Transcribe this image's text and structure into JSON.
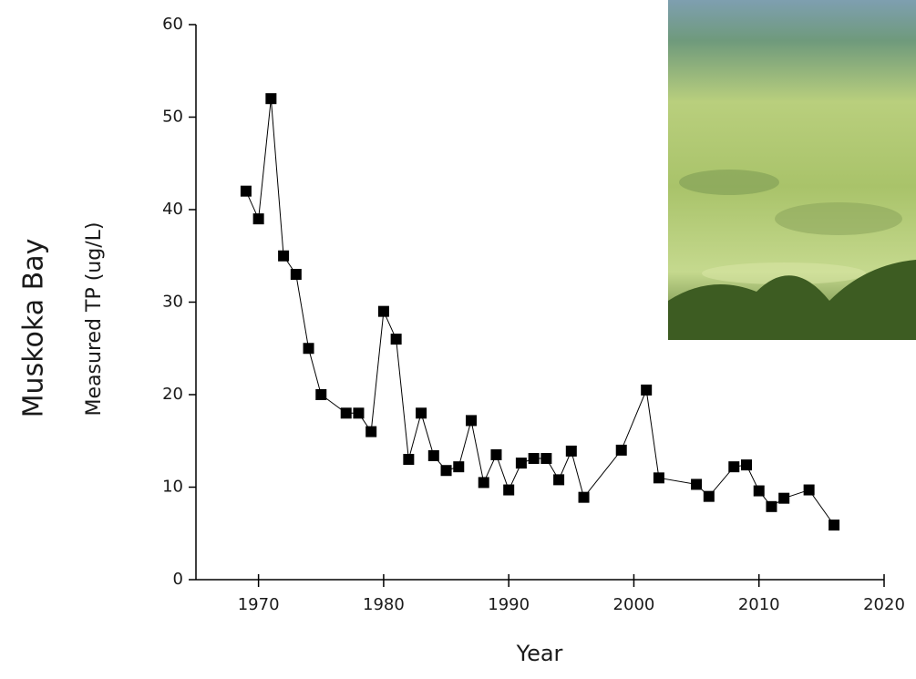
{
  "chart_data": {
    "type": "line",
    "group_label": "Muskoka Bay",
    "y_label": "Measured TP (ug/L)",
    "x_label": "Year",
    "x": [
      1969,
      1970,
      1971,
      1972,
      1973,
      1974,
      1975,
      1977,
      1978,
      1979,
      1980,
      1981,
      1982,
      1983,
      1984,
      1985,
      1986,
      1987,
      1988,
      1989,
      1990,
      1991,
      1992,
      1993,
      1994,
      1995,
      1996,
      1999,
      2001,
      2002,
      2005,
      2006,
      2008,
      2009,
      2010,
      2011,
      2012,
      2014,
      2016
    ],
    "series": [
      {
        "color": "#000000",
        "marker": "square",
        "values": [
          42,
          39,
          52,
          35,
          33,
          25,
          20,
          18,
          18,
          16,
          29,
          26,
          13,
          18,
          13.4,
          11.8,
          12.2,
          17.2,
          10.5,
          13.5,
          9.7,
          12.6,
          13.1,
          13.1,
          10.8,
          13.9,
          8.9,
          14,
          20.5,
          11,
          10.3,
          9,
          12.2,
          12.4,
          9.6,
          7.9,
          8.8,
          9.7,
          5.9
        ]
      }
    ],
    "xlim": [
      1965,
      2020
    ],
    "xticks": [
      1970,
      1980,
      1990,
      2000,
      2010,
      2020
    ],
    "ylim": [
      0,
      60
    ],
    "yticks": [
      0,
      10,
      20,
      30,
      40,
      50,
      60
    ]
  }
}
